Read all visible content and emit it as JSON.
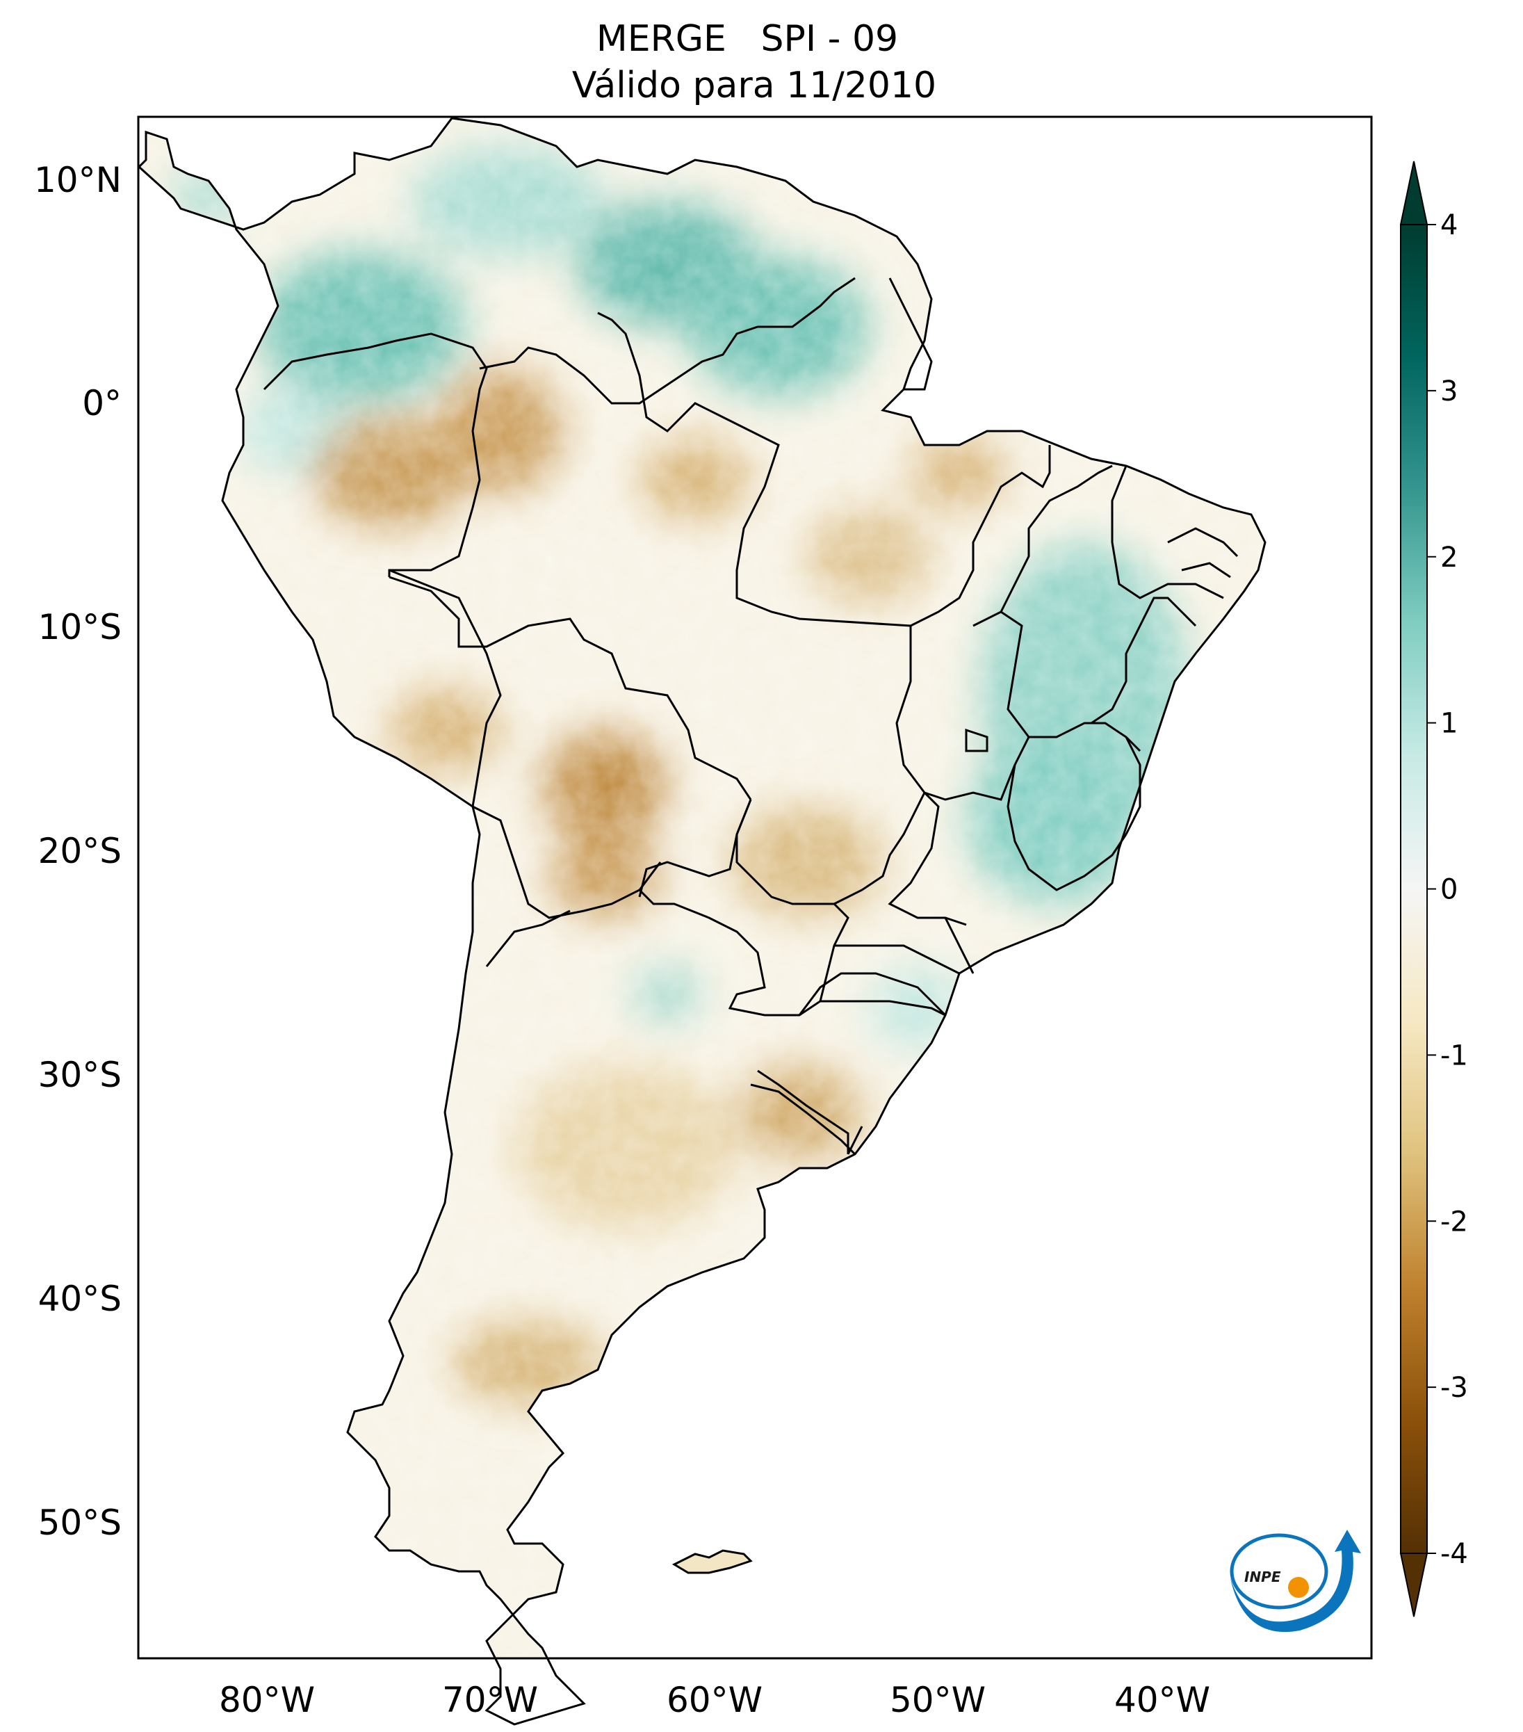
{
  "title": {
    "line1": "MERGE   SPI - 09",
    "line2": "Válido para 11/2010"
  },
  "map": {
    "lon_ticks": [
      "80°W",
      "70°W",
      "60°W",
      "50°W",
      "40°W"
    ],
    "lat_ticks": [
      "10°N",
      "0°",
      "10°S",
      "20°S",
      "30°S",
      "40°S",
      "50°S"
    ]
  },
  "colorbar": {
    "ticks": [
      "4",
      "3",
      "2",
      "1",
      "0",
      "-1",
      "-2",
      "-3",
      "-4"
    ],
    "range": [
      -4,
      4
    ],
    "extend": "both",
    "colormap": [
      "#543005",
      "#8c510a",
      "#bf812d",
      "#dfc27d",
      "#f6e8c3",
      "#f5f5f5",
      "#c7eae5",
      "#80cdc1",
      "#35978f",
      "#01665e",
      "#003c30"
    ]
  },
  "logo": {
    "text": "INPE",
    "colors": {
      "primary": "#0a75bd",
      "accent": "#f39200"
    }
  }
}
